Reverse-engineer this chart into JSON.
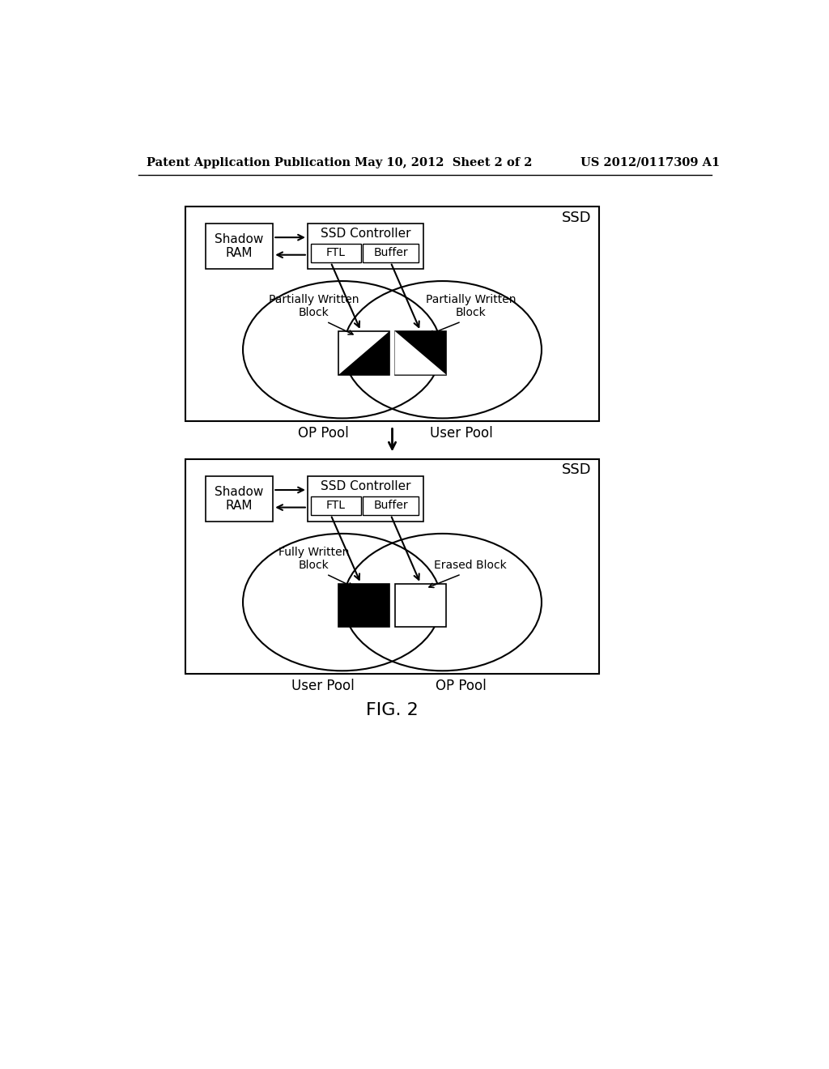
{
  "header_left": "Patent Application Publication",
  "header_center": "May 10, 2012  Sheet 2 of 2",
  "header_right": "US 2012/0117309 A1",
  "fig_label": "FIG. 2",
  "bg_color": "#ffffff",
  "diagram1": {
    "outer_label": "SSD",
    "shadow_ram_label": "Shadow\nRAM",
    "ssd_controller_label": "SSD Controller",
    "ftl_label": "FTL",
    "buffer_label": "Buffer",
    "left_pool_label": "OP Pool",
    "right_pool_label": "User Pool",
    "left_block_label": "Partially Written\nBlock",
    "right_block_label": "Partially Written\nBlock",
    "left_style": "partial_white",
    "right_style": "partial_black"
  },
  "diagram2": {
    "outer_label": "SSD",
    "shadow_ram_label": "Shadow\nRAM",
    "ssd_controller_label": "SSD Controller",
    "ftl_label": "FTL",
    "buffer_label": "Buffer",
    "left_pool_label": "User Pool",
    "right_pool_label": "OP Pool",
    "left_block_label": "Fully Written\nBlock",
    "right_block_label": "Erased Block",
    "left_style": "full_black",
    "right_style": "erased"
  }
}
